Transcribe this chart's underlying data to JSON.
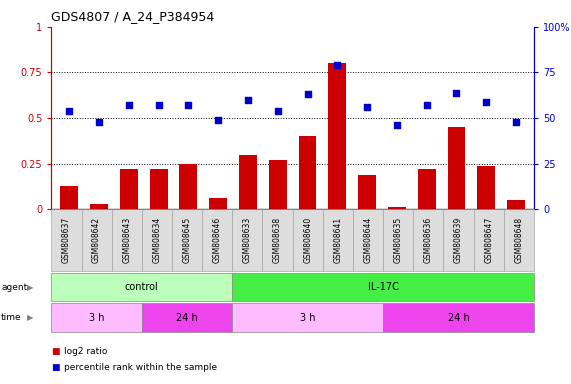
{
  "title": "GDS4807 / A_24_P384954",
  "samples": [
    "GSM808637",
    "GSM808642",
    "GSM808643",
    "GSM808634",
    "GSM808645",
    "GSM808646",
    "GSM808633",
    "GSM808638",
    "GSM808640",
    "GSM808641",
    "GSM808644",
    "GSM808635",
    "GSM808636",
    "GSM808639",
    "GSM808647",
    "GSM808648"
  ],
  "log2_ratio": [
    0.13,
    0.03,
    0.22,
    0.22,
    0.25,
    0.06,
    0.3,
    0.27,
    0.4,
    0.8,
    0.19,
    0.01,
    0.22,
    0.45,
    0.24,
    0.05
  ],
  "percentile": [
    54,
    48,
    57,
    57,
    57,
    49,
    60,
    54,
    63,
    79,
    56,
    46,
    57,
    64,
    59,
    48
  ],
  "bar_color": "#cc0000",
  "dot_color": "#0000cc",
  "ylim_left": [
    0,
    1.0
  ],
  "ylim_right": [
    0,
    100
  ],
  "yticks_left": [
    0,
    0.25,
    0.5,
    0.75,
    1.0
  ],
  "yticks_right": [
    0,
    25,
    50,
    75,
    100
  ],
  "ytick_labels_left": [
    "0",
    "0.25",
    "0.5",
    "0.75",
    "1"
  ],
  "ytick_labels_right": [
    "0",
    "25",
    "50",
    "75",
    "100%"
  ],
  "agent_groups": [
    {
      "label": "control",
      "start": 0,
      "end": 6,
      "color": "#bbffbb"
    },
    {
      "label": "IL-17C",
      "start": 6,
      "end": 16,
      "color": "#44ee44"
    }
  ],
  "time_groups": [
    {
      "label": "3 h",
      "start": 0,
      "end": 3,
      "color": "#ffbbff"
    },
    {
      "label": "24 h",
      "start": 3,
      "end": 6,
      "color": "#ee44ee"
    },
    {
      "label": "3 h",
      "start": 6,
      "end": 11,
      "color": "#ffbbff"
    },
    {
      "label": "24 h",
      "start": 11,
      "end": 16,
      "color": "#ee44ee"
    }
  ],
  "legend_items": [
    {
      "label": "log2 ratio",
      "color": "#cc0000"
    },
    {
      "label": "percentile rank within the sample",
      "color": "#0000cc"
    }
  ],
  "bg_color": "#ffffff",
  "plot_bg": "#ffffff",
  "left_axis_color": "#cc0000",
  "right_axis_color": "#0000cc",
  "xtick_bg": "#dddddd"
}
